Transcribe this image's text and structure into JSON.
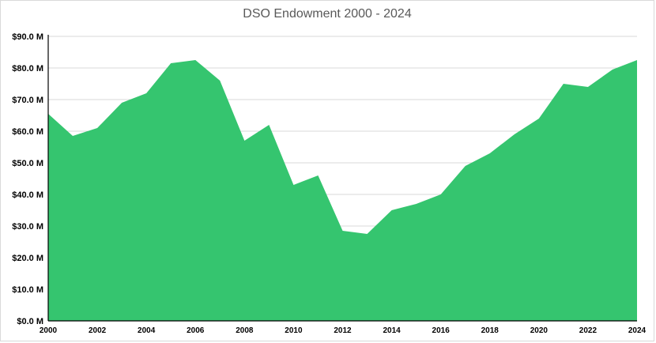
{
  "chart_data": {
    "type": "area",
    "title": "DSO Endowment 2000 - 2024",
    "xlabel": "",
    "ylabel": "",
    "color": "#35c56f",
    "grid": true,
    "ylim": [
      0,
      90
    ],
    "yticks": [
      0,
      10,
      20,
      30,
      40,
      50,
      60,
      70,
      80,
      90
    ],
    "ytick_labels": [
      "$0.0 M",
      "$10.0 M",
      "$20.0 M",
      "$30.0 M",
      "$40.0 M",
      "$50.0 M",
      "$60.0 M",
      "$70.0 M",
      "$80.0 M",
      "$90.0 M"
    ],
    "xticks": [
      "2000",
      "2002",
      "2004",
      "2006",
      "2008",
      "2010",
      "2012",
      "2014",
      "2016",
      "2018",
      "2020",
      "2022",
      "2024"
    ],
    "x": [
      2000,
      2001,
      2002,
      2003,
      2004,
      2005,
      2006,
      2007,
      2008,
      2009,
      2010,
      2011,
      2012,
      2013,
      2014,
      2015,
      2016,
      2017,
      2018,
      2019,
      2020,
      2021,
      2022,
      2023,
      2024
    ],
    "series": [
      {
        "values": [
          65.5,
          58.5,
          61,
          69,
          72,
          81.5,
          82.5,
          76,
          57,
          62,
          43,
          46,
          28.5,
          27.5,
          35,
          37,
          40,
          49,
          53,
          59,
          64,
          75,
          74,
          79.5,
          82.5
        ]
      }
    ]
  }
}
